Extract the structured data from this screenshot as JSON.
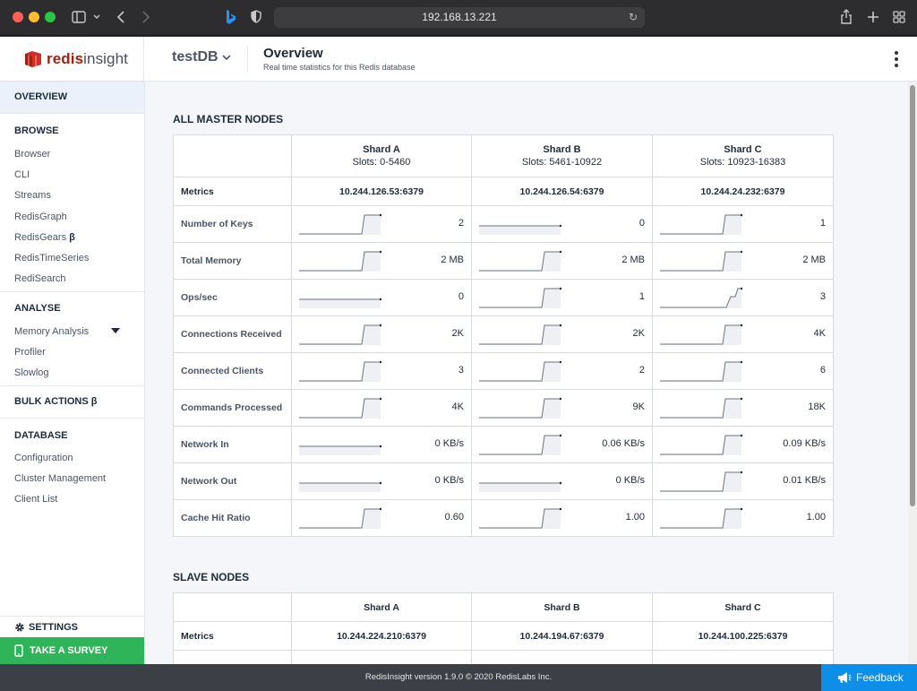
{
  "browser": {
    "url": "192.168.13.221"
  },
  "app": {
    "logo_text_bold": "redis",
    "logo_text_light": "insight",
    "database": "testDB",
    "page_title": "Overview",
    "page_subtitle": "Real time statistics for this Redis database"
  },
  "sidebar": {
    "overview": "OVERVIEW",
    "browse": "BROWSE",
    "browse_items": [
      "Browser",
      "CLI",
      "Streams",
      "RedisGraph",
      "RedisGears",
      "RedisTimeSeries",
      "RediSearch"
    ],
    "beta_symbol": "β",
    "analyse": "ANALYSE",
    "analyse_items": [
      "Memory Analysis",
      "Profiler",
      "Slowlog"
    ],
    "bulk_actions": "BULK ACTIONS",
    "database": "DATABASE",
    "database_items": [
      "Configuration",
      "Cluster Management",
      "Client List"
    ],
    "settings": "SETTINGS",
    "survey": "TAKE A SURVEY"
  },
  "master": {
    "title": "ALL MASTER NODES",
    "metrics_label": "Metrics",
    "shards": [
      {
        "name": "Shard A",
        "slots": "Slots: 0-5460",
        "node": "10.244.126.53:6379"
      },
      {
        "name": "Shard B",
        "slots": "Slots: 5461-10922",
        "node": "10.244.126.54:6379"
      },
      {
        "name": "Shard C",
        "slots": "Slots: 10923-16383",
        "node": "10.244.24.232:6379"
      }
    ],
    "rows": [
      {
        "label": "Number of Keys",
        "values": [
          "2",
          "0",
          "1"
        ]
      },
      {
        "label": "Total Memory",
        "values": [
          "2 MB",
          "2 MB",
          "2 MB"
        ]
      },
      {
        "label": "Ops/sec",
        "values": [
          "0",
          "1",
          "3"
        ]
      },
      {
        "label": "Connections Received",
        "values": [
          "2K",
          "2K",
          "4K"
        ]
      },
      {
        "label": "Connected Clients",
        "values": [
          "3",
          "2",
          "6"
        ]
      },
      {
        "label": "Commands Processed",
        "values": [
          "4K",
          "9K",
          "18K"
        ]
      },
      {
        "label": "Network In",
        "values": [
          "0 KB/s",
          "0.06 KB/s",
          "0.09 KB/s"
        ]
      },
      {
        "label": "Network Out",
        "values": [
          "0 KB/s",
          "0 KB/s",
          "0.01 KB/s"
        ]
      },
      {
        "label": "Cache Hit Ratio",
        "values": [
          "0.60",
          "1.00",
          "1.00"
        ]
      }
    ]
  },
  "slave": {
    "title": "SLAVE NODES",
    "metrics_label": "Metrics",
    "shards": [
      {
        "name": "Shard A",
        "node": "10.244.224.210:6379"
      },
      {
        "name": "Shard B",
        "node": "10.244.194.67:6379"
      },
      {
        "name": "Shard C",
        "node": "10.244.100.225:6379"
      }
    ]
  },
  "footer": {
    "text": "RedisInsight version 1.9.0 © 2020 RedisLabs Inc.",
    "feedback": "Feedback"
  }
}
